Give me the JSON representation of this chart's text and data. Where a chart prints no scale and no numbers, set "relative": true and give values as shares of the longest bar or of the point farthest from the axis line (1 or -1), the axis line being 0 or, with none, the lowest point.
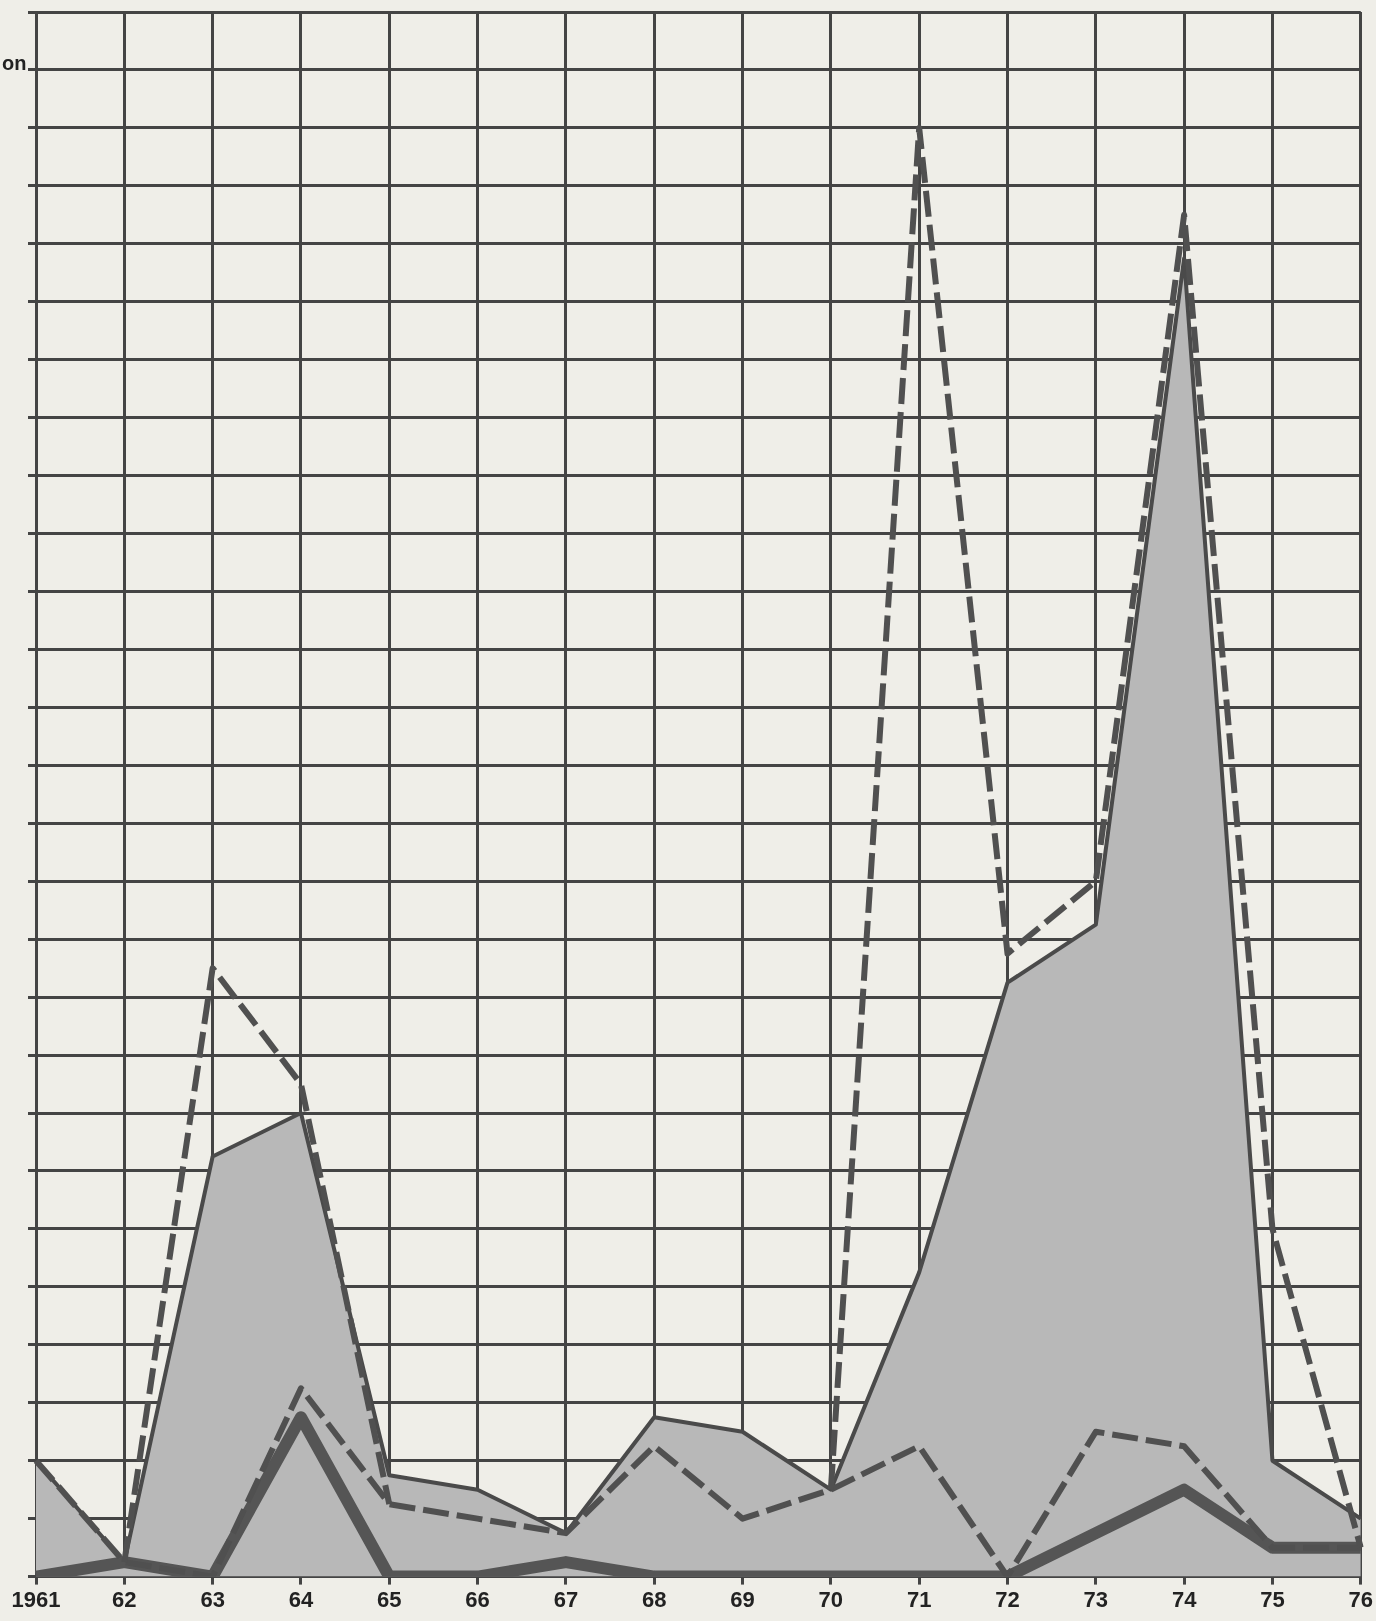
{
  "chart_data": {
    "type": "line",
    "relative": true,
    "ylabel": "on",
    "grid": true,
    "legend": false,
    "categories": [
      "1961",
      "62",
      "63",
      "64",
      "65",
      "66",
      "67",
      "68",
      "69",
      "70",
      "71",
      "72",
      "73",
      "74",
      "75",
      "76"
    ],
    "series": [
      {
        "type": "line",
        "color": "#505050",
        "line_style": "dashed",
        "values": [
          null,
          0.01,
          0.42,
          0.34,
          0.05,
          null,
          null,
          null,
          null,
          0.06,
          1,
          0.43,
          0.48,
          0.94,
          0.24,
          0.02
        ]
      },
      {
        "type": "line",
        "color": "#505050",
        "line_style": "dashed",
        "values": [
          0.08,
          0.01,
          0.0,
          0.13,
          0.05,
          0.04,
          0.03,
          0.09,
          0.04,
          0.06,
          0.09,
          0.0,
          0.1,
          0.09,
          0.02,
          0.02
        ]
      },
      {
        "type": "line",
        "color": "#555555",
        "line_style": "solid",
        "values": [
          0.0,
          0.01,
          0.0,
          0.11,
          0.0,
          0.0,
          0.01,
          0.0,
          0.0,
          0.0,
          0.0,
          0.0,
          0.03,
          0.06,
          0.02,
          0.02
        ]
      },
      {
        "type": "area",
        "color": "#b8b8b8",
        "values": [
          0.08,
          0.01,
          0.29,
          0.32,
          0.07,
          0.06,
          0.03,
          0.11,
          0.1,
          0.06,
          0.21,
          0.41,
          0.45,
          0.91,
          0.08,
          0.04
        ]
      }
    ]
  }
}
